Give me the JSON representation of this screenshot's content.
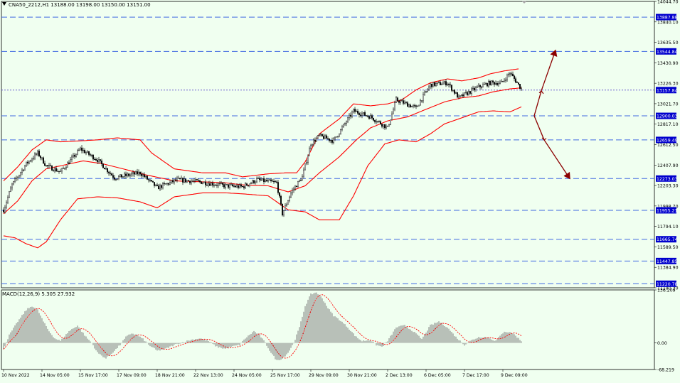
{
  "header": {
    "symbol_info": "CNA50_2212,H1  13188.00 13198.00 13150.00 13151.00",
    "macd_info": "MACD(12,26,9) 5.305 27.932"
  },
  "colors": {
    "background": "#f0fff0",
    "band": "#ff0000",
    "candle": "#000000",
    "hline": "#4169e1",
    "arrow": "#8b0000",
    "label_bg": "#0000cd",
    "current_price_line": "#6a5acd",
    "macd_hist": "#808080",
    "macd_signal": "#ff0000"
  },
  "chart_data": [
    {
      "type": "candlestick",
      "panel": "price",
      "ylim": [
        11180.3,
        14044.7
      ],
      "y_ticks": [
        "14044.70",
        "13840.10",
        "13635.50",
        "13430.90",
        "13226.30",
        "13021.70",
        "12817.10",
        "12612.50",
        "12407.90",
        "12203.30",
        "11998.70",
        "11794.10",
        "11589.50",
        "11384.90",
        "11180.30"
      ],
      "x_ticks": [
        "10 Nov 2022",
        "14 Nov 05:00",
        "15 Nov 17:00",
        "17 Nov 09:00",
        "18 Nov 21:00",
        "22 Nov 13:00",
        "24 Nov 05:00",
        "25 Nov 17:00",
        "29 Nov 09:00",
        "30 Nov 21:00",
        "2 Dec 13:00",
        "6 Dec 05:00",
        "7 Dec 17:00",
        "9 Dec 09:00"
      ],
      "x_tick_index": [
        0,
        27,
        54,
        81,
        108,
        135,
        162,
        189,
        216,
        243,
        270,
        297,
        324,
        351
      ],
      "bar_count": 365,
      "close_anchors": [
        [
          0,
          11960
        ],
        [
          6,
          12210
        ],
        [
          16,
          12420
        ],
        [
          24,
          12530
        ],
        [
          30,
          12400
        ],
        [
          40,
          12340
        ],
        [
          54,
          12570
        ],
        [
          66,
          12460
        ],
        [
          78,
          12280
        ],
        [
          96,
          12330
        ],
        [
          108,
          12180
        ],
        [
          122,
          12260
        ],
        [
          138,
          12240
        ],
        [
          156,
          12200
        ],
        [
          168,
          12190
        ],
        [
          178,
          12260
        ],
        [
          192,
          12230
        ],
        [
          196,
          11920
        ],
        [
          202,
          12130
        ],
        [
          210,
          12290
        ],
        [
          216,
          12620
        ],
        [
          222,
          12700
        ],
        [
          232,
          12650
        ],
        [
          246,
          12950
        ],
        [
          258,
          12890
        ],
        [
          270,
          12780
        ],
        [
          276,
          13060
        ],
        [
          290,
          12980
        ],
        [
          300,
          13210
        ],
        [
          312,
          13230
        ],
        [
          320,
          13080
        ],
        [
          334,
          13190
        ],
        [
          342,
          13230
        ],
        [
          350,
          13230
        ],
        [
          356,
          13330
        ],
        [
          365,
          13151
        ]
      ],
      "bollinger_upper_anchors": [
        [
          0,
          12250
        ],
        [
          10,
          12390
        ],
        [
          20,
          12560
        ],
        [
          30,
          12660
        ],
        [
          40,
          12640
        ],
        [
          54,
          12650
        ],
        [
          66,
          12660
        ],
        [
          80,
          12680
        ],
        [
          96,
          12660
        ],
        [
          104,
          12530
        ],
        [
          120,
          12370
        ],
        [
          140,
          12330
        ],
        [
          156,
          12330
        ],
        [
          168,
          12290
        ],
        [
          186,
          12320
        ],
        [
          198,
          12330
        ],
        [
          206,
          12330
        ],
        [
          212,
          12440
        ],
        [
          222,
          12720
        ],
        [
          236,
          12870
        ],
        [
          246,
          13020
        ],
        [
          258,
          13000
        ],
        [
          270,
          13020
        ],
        [
          280,
          13060
        ],
        [
          290,
          13160
        ],
        [
          300,
          13230
        ],
        [
          312,
          13270
        ],
        [
          322,
          13250
        ],
        [
          334,
          13280
        ],
        [
          342,
          13320
        ],
        [
          352,
          13350
        ],
        [
          362,
          13370
        ]
      ],
      "bollinger_middle_anchors": [
        [
          0,
          11920
        ],
        [
          10,
          12050
        ],
        [
          20,
          12250
        ],
        [
          30,
          12370
        ],
        [
          40,
          12400
        ],
        [
          56,
          12450
        ],
        [
          70,
          12420
        ],
        [
          84,
          12370
        ],
        [
          100,
          12310
        ],
        [
          120,
          12250
        ],
        [
          140,
          12240
        ],
        [
          156,
          12230
        ],
        [
          168,
          12210
        ],
        [
          186,
          12200
        ],
        [
          200,
          12140
        ],
        [
          212,
          12200
        ],
        [
          222,
          12330
        ],
        [
          236,
          12490
        ],
        [
          248,
          12660
        ],
        [
          258,
          12780
        ],
        [
          270,
          12850
        ],
        [
          284,
          12890
        ],
        [
          296,
          12960
        ],
        [
          310,
          13040
        ],
        [
          322,
          13080
        ],
        [
          334,
          13100
        ],
        [
          344,
          13140
        ],
        [
          356,
          13170
        ],
        [
          364,
          13180
        ]
      ],
      "bollinger_lower_anchors": [
        [
          0,
          11700
        ],
        [
          8,
          11680
        ],
        [
          16,
          11620
        ],
        [
          24,
          11580
        ],
        [
          30,
          11640
        ],
        [
          40,
          11860
        ],
        [
          52,
          12070
        ],
        [
          66,
          12090
        ],
        [
          80,
          12080
        ],
        [
          96,
          12040
        ],
        [
          108,
          11980
        ],
        [
          120,
          12090
        ],
        [
          140,
          12130
        ],
        [
          156,
          12130
        ],
        [
          168,
          12120
        ],
        [
          186,
          12100
        ],
        [
          200,
          11960
        ],
        [
          212,
          11940
        ],
        [
          222,
          11860
        ],
        [
          236,
          11860
        ],
        [
          246,
          12100
        ],
        [
          256,
          12400
        ],
        [
          268,
          12620
        ],
        [
          278,
          12660
        ],
        [
          290,
          12640
        ],
        [
          300,
          12720
        ],
        [
          310,
          12820
        ],
        [
          322,
          12880
        ],
        [
          334,
          12940
        ],
        [
          344,
          12950
        ],
        [
          356,
          12940
        ],
        [
          364,
          12990
        ]
      ],
      "horizontal_levels": [
        "13887.88",
        "13544.84",
        "12900.03",
        "12659.49",
        "12273.03",
        "11955.21",
        "11665.74",
        "11447.85",
        "11220.78"
      ],
      "current_price": "13157.84",
      "forecast_arrows": [
        {
          "start_index": 373,
          "start_price": 12900,
          "points": [
            [
              378,
              13150
            ],
            [
              388,
              13555
            ]
          ]
        },
        {
          "start_index": 373,
          "start_price": 12900,
          "points": [
            [
              380,
              12660
            ],
            [
              398,
              12273
            ]
          ]
        }
      ]
    },
    {
      "type": "bar",
      "panel": "macd",
      "ylim": [
        -68.219,
        136.209
      ],
      "y_ticks": [
        "136.209",
        "0.00",
        "-68.219"
      ],
      "hist_anchors": [
        [
          0,
          -15
        ],
        [
          4,
          20
        ],
        [
          10,
          55
        ],
        [
          16,
          85
        ],
        [
          20,
          95
        ],
        [
          24,
          85
        ],
        [
          28,
          55
        ],
        [
          32,
          30
        ],
        [
          36,
          12
        ],
        [
          40,
          5
        ],
        [
          46,
          30
        ],
        [
          52,
          45
        ],
        [
          58,
          15
        ],
        [
          62,
          0
        ],
        [
          66,
          -25
        ],
        [
          72,
          -40
        ],
        [
          78,
          -20
        ],
        [
          82,
          -5
        ],
        [
          86,
          15
        ],
        [
          90,
          25
        ],
        [
          94,
          20
        ],
        [
          98,
          10
        ],
        [
          102,
          -5
        ],
        [
          108,
          -20
        ],
        [
          114,
          -15
        ],
        [
          120,
          -5
        ],
        [
          126,
          2
        ],
        [
          132,
          8
        ],
        [
          138,
          12
        ],
        [
          144,
          5
        ],
        [
          150,
          -10
        ],
        [
          156,
          -15
        ],
        [
          160,
          -10
        ],
        [
          166,
          -5
        ],
        [
          170,
          12
        ],
        [
          176,
          30
        ],
        [
          180,
          20
        ],
        [
          184,
          0
        ],
        [
          188,
          -25
        ],
        [
          192,
          -45
        ],
        [
          196,
          -40
        ],
        [
          200,
          -25
        ],
        [
          204,
          0
        ],
        [
          208,
          40
        ],
        [
          212,
          95
        ],
        [
          216,
          125
        ],
        [
          220,
          130
        ],
        [
          224,
          115
        ],
        [
          228,
          90
        ],
        [
          232,
          70
        ],
        [
          236,
          60
        ],
        [
          242,
          40
        ],
        [
          248,
          15
        ],
        [
          252,
          5
        ],
        [
          258,
          8
        ],
        [
          262,
          -5
        ],
        [
          266,
          -10
        ],
        [
          270,
          5
        ],
        [
          276,
          40
        ],
        [
          282,
          45
        ],
        [
          288,
          30
        ],
        [
          294,
          10
        ],
        [
          300,
          45
        ],
        [
          306,
          55
        ],
        [
          312,
          40
        ],
        [
          318,
          15
        ],
        [
          324,
          -5
        ],
        [
          328,
          5
        ],
        [
          334,
          15
        ],
        [
          340,
          15
        ],
        [
          346,
          5
        ],
        [
          352,
          30
        ],
        [
          358,
          25
        ],
        [
          364,
          5
        ]
      ],
      "signal_lag": 9
    }
  ]
}
